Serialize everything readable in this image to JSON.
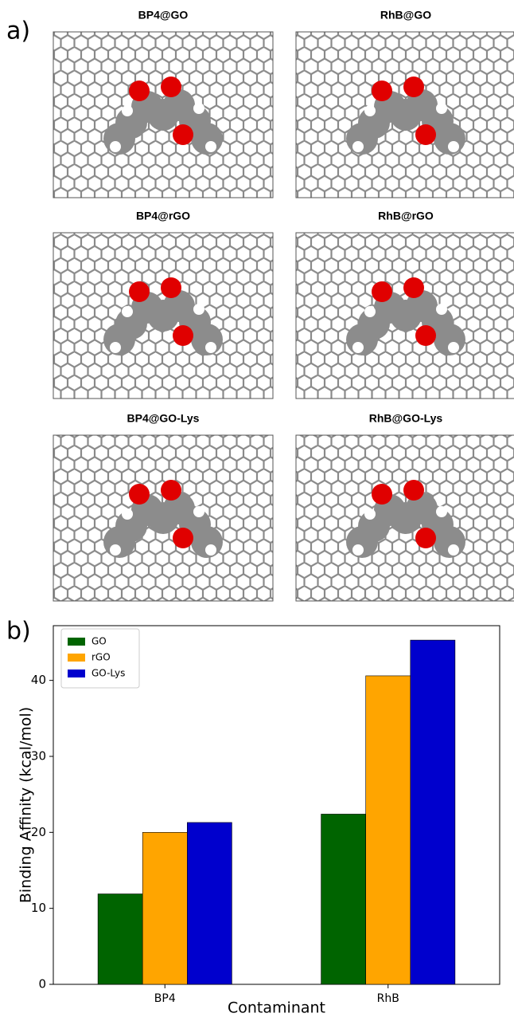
{
  "figure": {
    "panel_a": "a)",
    "panel_b": "b)",
    "images": [
      {
        "title": "BP4@GO"
      },
      {
        "title": "RhB@GO"
      },
      {
        "title": "BP4@rGO"
      },
      {
        "title": "RhB@rGO"
      },
      {
        "title": "BP4@GO-Lys"
      },
      {
        "title": "RhB@GO-Lys"
      }
    ]
  },
  "chart_data": {
    "type": "bar",
    "x_label": "Contaminant",
    "y_label": "Binding Affinity (kcal/mol)",
    "categories": [
      "BP4",
      "RhB"
    ],
    "series": [
      {
        "name": "GO",
        "color": "#006400",
        "values": [
          11.9,
          22.4
        ]
      },
      {
        "name": "rGO",
        "color": "#ffa500",
        "values": [
          20.0,
          40.6
        ]
      },
      {
        "name": "GO-Lys",
        "color": "#0000cd",
        "values": [
          21.3,
          45.3
        ]
      }
    ],
    "ylim": [
      0,
      47.2
    ],
    "yticks": [
      0,
      10,
      20,
      30,
      40
    ],
    "legend": "upper left",
    "grid": false
  }
}
